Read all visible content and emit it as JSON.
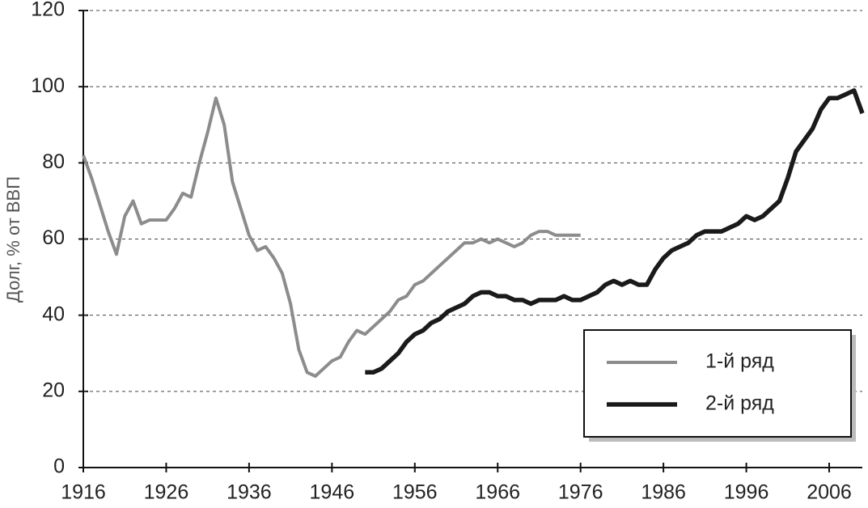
{
  "chart_data": {
    "type": "line",
    "ylabel": "Долг, % от ВВП",
    "x": [
      1916,
      1917,
      1918,
      1919,
      1920,
      1921,
      1922,
      1923,
      1924,
      1925,
      1926,
      1927,
      1928,
      1929,
      1930,
      1931,
      1932,
      1933,
      1934,
      1935,
      1936,
      1937,
      1938,
      1939,
      1940,
      1941,
      1942,
      1943,
      1944,
      1945,
      1946,
      1947,
      1948,
      1949,
      1950,
      1951,
      1952,
      1953,
      1954,
      1955,
      1956,
      1957,
      1958,
      1959,
      1960,
      1961,
      1962,
      1963,
      1964,
      1965,
      1966,
      1967,
      1968,
      1969,
      1970,
      1971,
      1972,
      1973,
      1974,
      1975,
      1976,
      1977,
      1978,
      1979,
      1980,
      1981,
      1982,
      1983,
      1984,
      1985,
      1986,
      1987,
      1988,
      1989,
      1990,
      1991,
      1992,
      1993,
      1994,
      1995,
      1996,
      1997,
      1998,
      1999,
      2000,
      2001,
      2002,
      2003,
      2004,
      2005,
      2006,
      2007,
      2008,
      2009,
      2010
    ],
    "series": [
      {
        "name": "1-й ряд",
        "color": "#8c8c8c",
        "values": [
          82,
          76,
          69,
          62,
          56,
          66,
          70,
          64,
          65,
          65,
          65,
          68,
          72,
          71,
          80,
          88,
          97,
          90,
          75,
          68,
          61,
          57,
          58,
          55,
          51,
          43,
          31,
          25,
          24,
          26,
          28,
          29,
          33,
          36,
          35,
          37,
          39,
          41,
          44,
          45,
          48,
          49,
          51,
          53,
          55,
          57,
          59,
          59,
          60,
          59,
          60,
          59,
          58,
          59,
          61,
          62,
          62,
          61,
          61,
          61,
          61,
          null,
          null,
          null,
          null,
          null,
          null,
          null,
          null,
          null,
          null,
          null,
          null,
          null,
          null,
          null,
          null,
          null,
          null,
          null,
          null,
          null,
          null,
          null,
          null,
          null,
          null,
          null,
          null,
          null,
          null,
          null,
          null,
          null,
          null
        ]
      },
      {
        "name": "2-й ряд",
        "color": "#1a1a1a",
        "values": [
          null,
          null,
          null,
          null,
          null,
          null,
          null,
          null,
          null,
          null,
          null,
          null,
          null,
          null,
          null,
          null,
          null,
          null,
          null,
          null,
          null,
          null,
          null,
          null,
          null,
          null,
          null,
          null,
          null,
          null,
          null,
          null,
          null,
          null,
          25,
          25,
          26,
          28,
          30,
          33,
          35,
          36,
          38,
          39,
          41,
          42,
          43,
          45,
          46,
          46,
          45,
          45,
          44,
          44,
          43,
          44,
          44,
          44,
          45,
          44,
          44,
          45,
          46,
          48,
          49,
          48,
          49,
          48,
          48,
          52,
          55,
          57,
          58,
          59,
          61,
          62,
          62,
          62,
          63,
          64,
          66,
          65,
          66,
          68,
          70,
          76,
          83,
          86,
          89,
          94,
          97,
          97,
          98,
          99,
          93
        ]
      }
    ],
    "xlim": [
      1916,
      2010
    ],
    "xticks": [
      1916,
      1926,
      1936,
      1946,
      1956,
      1966,
      1976,
      1986,
      1996,
      2006
    ],
    "ylim": [
      0,
      120
    ],
    "yticks": [
      0,
      20,
      40,
      60,
      80,
      100,
      120
    ],
    "grid": true,
    "legend": "lower right"
  }
}
